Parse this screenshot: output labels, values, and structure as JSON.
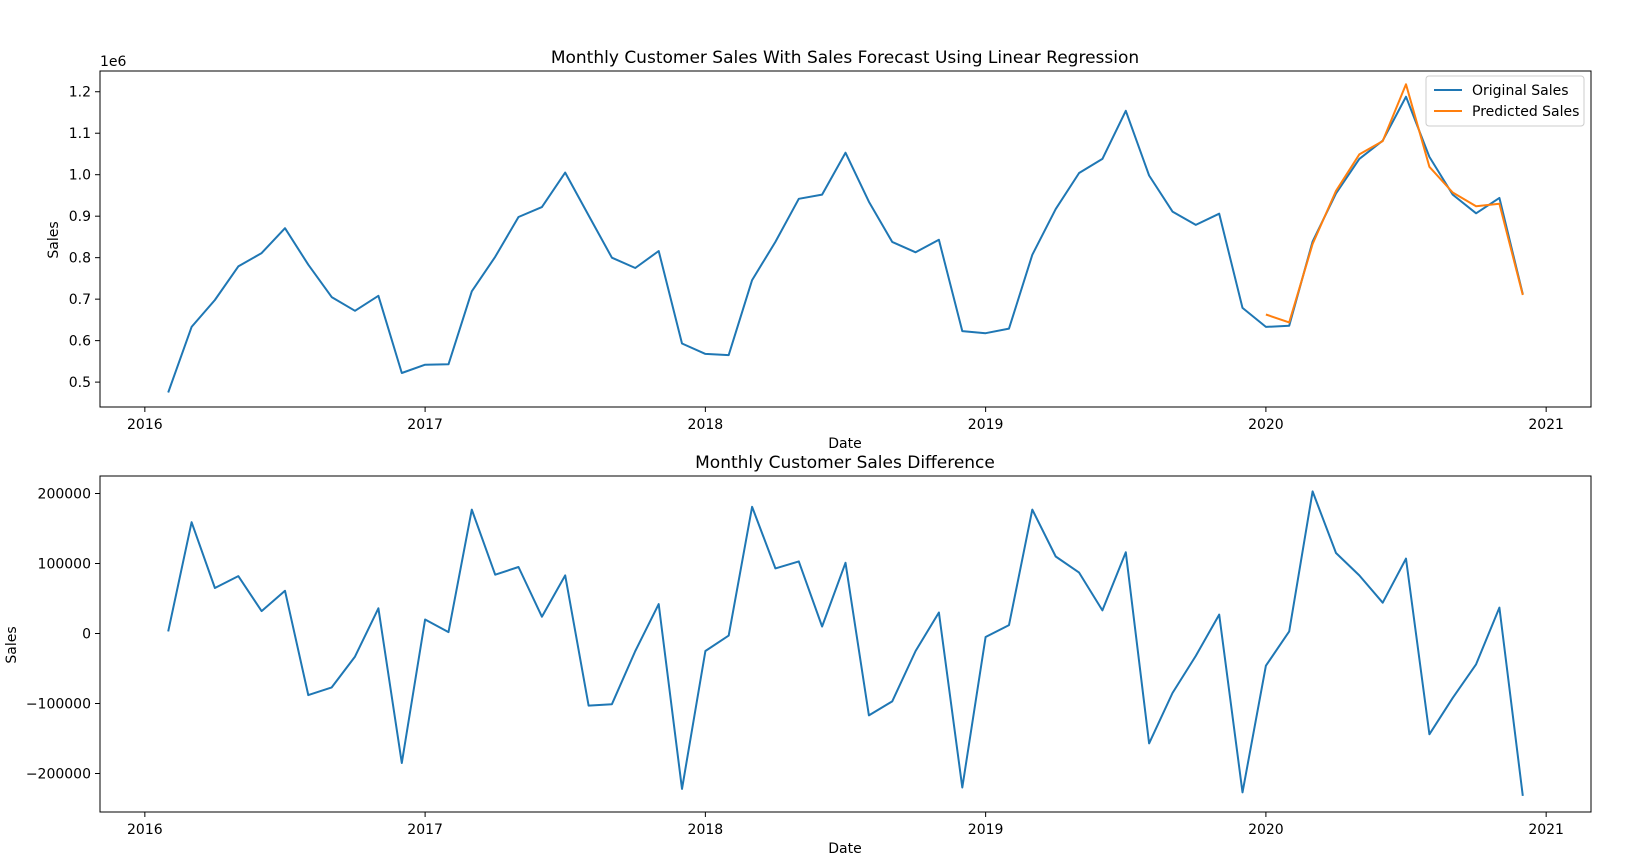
{
  "chart_data": [
    {
      "type": "line",
      "title": "Monthly Customer Sales With Sales Forecast Using Linear Regression",
      "xlabel": "Date",
      "ylabel": "Sales",
      "offset_label": "1e6",
      "xlim": [
        2015.84,
        2021.16
      ],
      "ylim": [
        0.44,
        1.25
      ],
      "x_ticks": [
        2016,
        2017,
        2018,
        2019,
        2020,
        2021
      ],
      "x_tick_labels": [
        "2016",
        "2017",
        "2018",
        "2019",
        "2020",
        "2021"
      ],
      "y_ticks": [
        0.5,
        0.6,
        0.7,
        0.8,
        0.9,
        1.0,
        1.1,
        1.2
      ],
      "y_tick_labels": [
        "0.5",
        "0.6",
        "0.7",
        "0.8",
        "0.9",
        "1.0",
        "1.1",
        "1.2"
      ],
      "legend": {
        "placement": "top-right",
        "entries": [
          "Original Sales",
          "Predicted Sales"
        ]
      },
      "grid": false,
      "series": [
        {
          "name": "Original Sales",
          "color": "#1f77b4",
          "x": [
            "2016-02",
            "2016-03",
            "2016-04",
            "2016-05",
            "2016-06",
            "2016-07",
            "2016-08",
            "2016-09",
            "2016-10",
            "2016-11",
            "2016-12",
            "2017-01",
            "2017-02",
            "2017-03",
            "2017-04",
            "2017-05",
            "2017-06",
            "2017-07",
            "2017-08",
            "2017-09",
            "2017-10",
            "2017-11",
            "2017-12",
            "2018-01",
            "2018-02",
            "2018-03",
            "2018-04",
            "2018-05",
            "2018-06",
            "2018-07",
            "2018-08",
            "2018-09",
            "2018-10",
            "2018-11",
            "2018-12",
            "2019-01",
            "2019-02",
            "2019-03",
            "2019-04",
            "2019-05",
            "2019-06",
            "2019-07",
            "2019-08",
            "2019-09",
            "2019-10",
            "2019-11",
            "2019-12",
            "2020-01",
            "2020-02",
            "2020-03",
            "2020-04",
            "2020-05",
            "2020-06",
            "2020-07",
            "2020-08",
            "2020-09",
            "2020-10",
            "2020-11",
            "2020-12"
          ],
          "values": [
            0.475,
            0.633,
            0.698,
            0.779,
            0.811,
            0.871,
            0.783,
            0.705,
            0.672,
            0.708,
            0.522,
            0.542,
            0.543,
            0.719,
            0.802,
            0.898,
            0.922,
            1.005,
            0.902,
            0.8,
            0.775,
            0.816,
            0.593,
            0.568,
            0.565,
            0.746,
            0.838,
            0.942,
            0.952,
            1.053,
            0.935,
            0.838,
            0.813,
            0.843,
            0.623,
            0.618,
            0.629,
            0.807,
            0.917,
            1.004,
            1.038,
            1.154,
            0.998,
            0.911,
            0.879,
            0.906,
            0.679,
            0.633,
            0.636,
            0.839,
            0.955,
            1.038,
            1.082,
            1.188,
            1.043,
            0.952,
            0.907,
            0.944,
            0.712
          ]
        },
        {
          "name": "Predicted Sales",
          "color": "#ff7f0e",
          "x": [
            "2020-01",
            "2020-02",
            "2020-03",
            "2020-04",
            "2020-05",
            "2020-06",
            "2020-07",
            "2020-08",
            "2020-09",
            "2020-10",
            "2020-11",
            "2020-12"
          ],
          "values": [
            0.663,
            0.644,
            0.833,
            0.961,
            1.049,
            1.081,
            1.218,
            1.019,
            0.957,
            0.924,
            0.93,
            0.71
          ]
        }
      ]
    },
    {
      "type": "line",
      "title": "Monthly Customer Sales Difference",
      "xlabel": "Date",
      "ylabel": "Sales",
      "xlim": [
        2015.84,
        2021.16
      ],
      "ylim": [
        -255000,
        225000
      ],
      "x_ticks": [
        2016,
        2017,
        2018,
        2019,
        2020,
        2021
      ],
      "x_tick_labels": [
        "2016",
        "2017",
        "2018",
        "2019",
        "2020",
        "2021"
      ],
      "y_ticks": [
        -200000,
        -100000,
        0,
        100000,
        200000
      ],
      "y_tick_labels": [
        "−200000",
        "−100000",
        "0",
        "100000",
        "200000"
      ],
      "grid": false,
      "series": [
        {
          "color": "#1f77b4",
          "x": [
            "2016-02",
            "2016-03",
            "2016-04",
            "2016-05",
            "2016-06",
            "2016-07",
            "2016-08",
            "2016-09",
            "2016-10",
            "2016-11",
            "2016-12",
            "2017-01",
            "2017-02",
            "2017-03",
            "2017-04",
            "2017-05",
            "2017-06",
            "2017-07",
            "2017-08",
            "2017-09",
            "2017-10",
            "2017-11",
            "2017-12",
            "2018-01",
            "2018-02",
            "2018-03",
            "2018-04",
            "2018-05",
            "2018-06",
            "2018-07",
            "2018-08",
            "2018-09",
            "2018-10",
            "2018-11",
            "2018-12",
            "2019-01",
            "2019-02",
            "2019-03",
            "2019-04",
            "2019-05",
            "2019-06",
            "2019-07",
            "2019-08",
            "2019-09",
            "2019-10",
            "2019-11",
            "2019-12",
            "2020-01",
            "2020-02",
            "2020-03",
            "2020-04",
            "2020-05",
            "2020-06",
            "2020-07",
            "2020-08",
            "2020-09",
            "2020-10",
            "2020-11",
            "2020-12"
          ],
          "values": [
            3000,
            159000,
            65000,
            82000,
            32000,
            61000,
            -88000,
            -77000,
            -33000,
            36000,
            -185000,
            20000,
            2000,
            177000,
            84000,
            95000,
            24000,
            83000,
            -103000,
            -101000,
            -25000,
            42000,
            -222000,
            -25000,
            -3000,
            181000,
            93000,
            103000,
            10000,
            101000,
            -117000,
            -97000,
            -25000,
            30000,
            -220000,
            -5000,
            12000,
            177000,
            110000,
            87000,
            33000,
            116000,
            -157000,
            -85000,
            -32000,
            27000,
            -227000,
            -46000,
            3000,
            203000,
            115000,
            83000,
            44000,
            107000,
            -144000,
            -92000,
            -44000,
            37000,
            -232000
          ]
        }
      ]
    }
  ]
}
